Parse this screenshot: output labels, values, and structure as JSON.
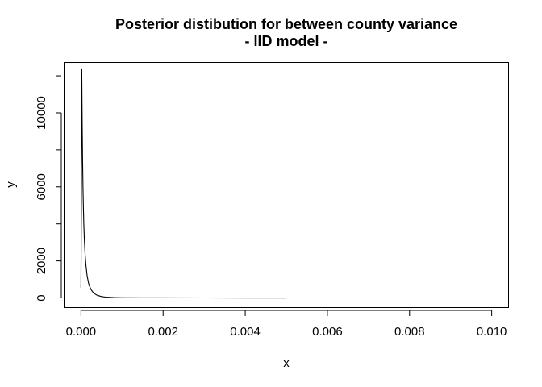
{
  "chart_data": {
    "type": "line",
    "title": "Posterior distibution for between county variance",
    "subtitle": "- IID model -",
    "xlabel": "x",
    "ylabel": "y",
    "xlim": [
      -0.0004,
      0.0104
    ],
    "ylim": [
      -500,
      12700
    ],
    "xticks": [
      0,
      0.002,
      0.004,
      0.006,
      0.008,
      0.01
    ],
    "xtick_labels": [
      "0.000",
      "0.002",
      "0.004",
      "0.006",
      "0.008",
      "0.010"
    ],
    "yticks": [
      0,
      2000,
      6000,
      10000
    ],
    "ytick_labels": [
      "0",
      "2000",
      "6000",
      "10000"
    ],
    "grid": false,
    "legend": "none",
    "series": [
      {
        "color": "#000000",
        "x": [
          0.0,
          1e-05,
          2e-05,
          3e-05,
          4e-05,
          5e-05,
          6e-05,
          7e-05,
          8e-05,
          0.0001,
          0.00012,
          0.00015,
          0.00018,
          0.0002,
          0.00025,
          0.0003,
          0.00035,
          0.0004,
          0.0005,
          0.0006,
          0.0008,
          0.001,
          0.0015,
          0.002,
          0.003,
          0.004,
          0.005
        ],
        "y": [
          550,
          5200,
          12400,
          9500,
          7400,
          5900,
          4800,
          3950,
          3300,
          2400,
          1800,
          1200,
          850,
          680,
          430,
          290,
          200,
          140,
          75,
          45,
          20,
          10,
          4,
          2,
          1,
          0,
          0
        ]
      }
    ]
  }
}
